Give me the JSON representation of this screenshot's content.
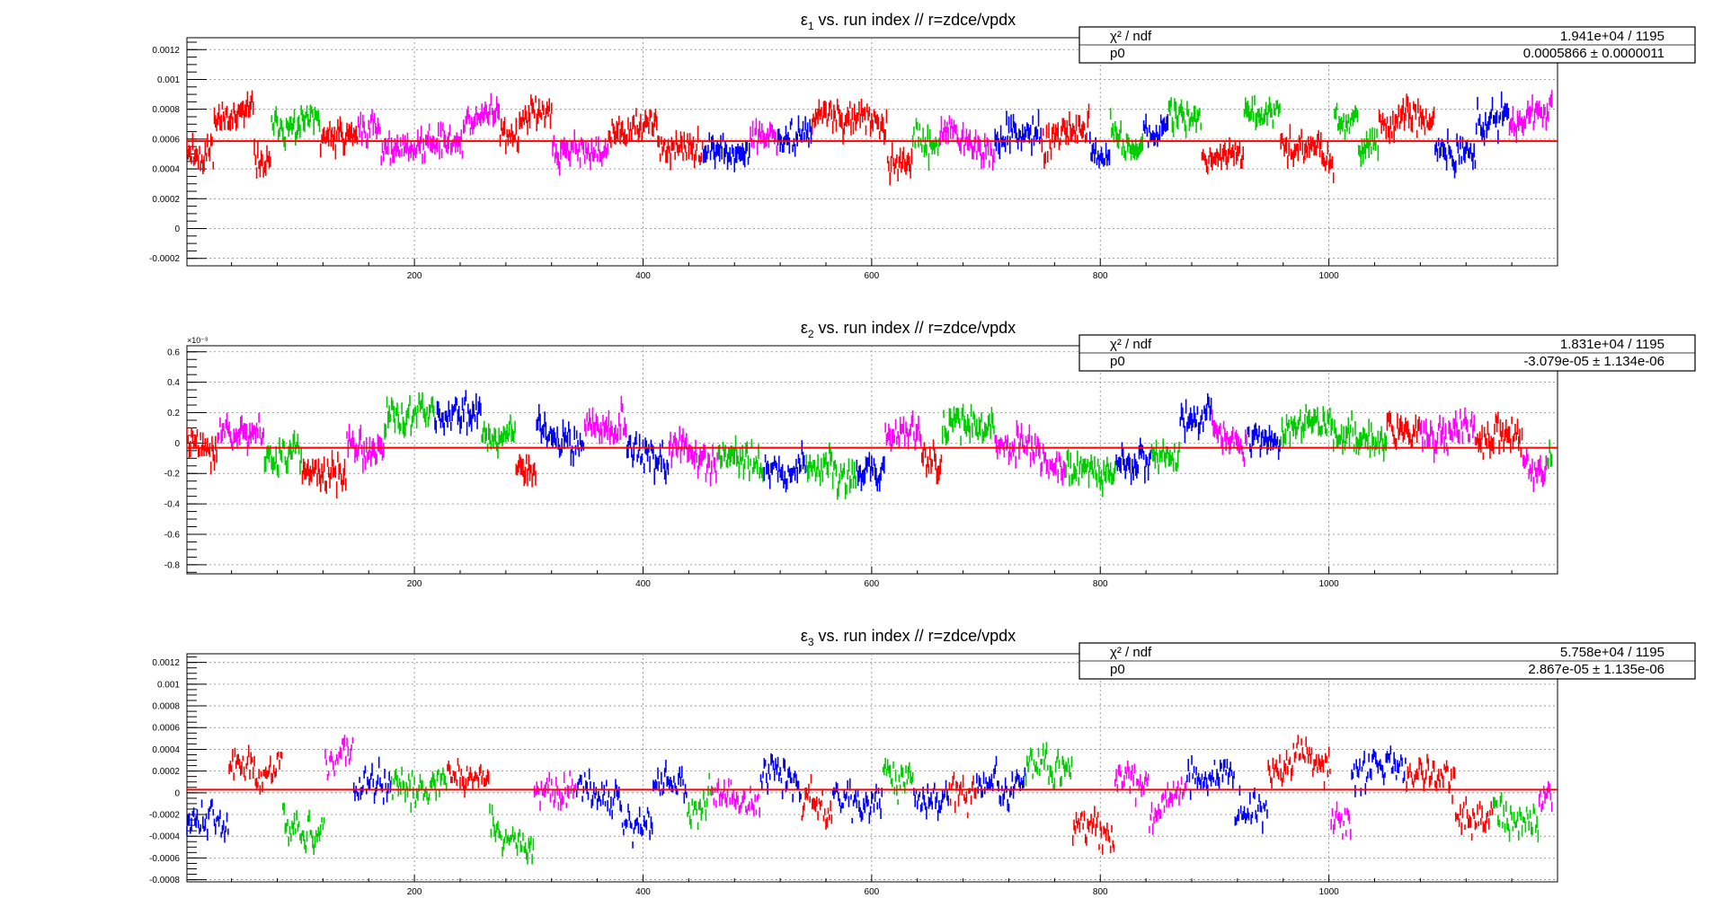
{
  "chart_data": [
    {
      "type": "scatter",
      "title_symbol": "ε",
      "title_sub": "1",
      "title_rest": "vs. run index // r=zdce/vpdx",
      "x_ticks": [
        200,
        400,
        600,
        800,
        1000
      ],
      "xlim": [
        1,
        1200
      ],
      "ylim": [
        -0.00025,
        0.00128
      ],
      "y_ticks": [
        -0.0002,
        0,
        0.0002,
        0.0004,
        0.0006,
        0.0008,
        0.001,
        0.0012
      ],
      "y_tick_labels": [
        "-0.0002",
        "0",
        "0.0002",
        "0.0004",
        "0.0006",
        "0.0008",
        "0.001",
        "0.0012"
      ],
      "y_exponent_label": "",
      "fit_value": 0.0005866,
      "fit_color": "#ff0000",
      "stats": {
        "row1_label": "χ² / ndf",
        "row1_value": "1.941e+04 / 1195",
        "row2_label": "p0",
        "row2_value": "0.0005866 ± 0.0000011"
      },
      "series_colors": [
        "#ff0000",
        "#0000ff",
        "#00cc00",
        "#ff00ff"
      ],
      "center": 0.0006,
      "sigma": 0.00015,
      "err": 4e-05,
      "seed": 11
    },
    {
      "type": "scatter",
      "title_symbol": "ε",
      "title_sub": "2",
      "title_rest": "vs. run index // r=zdce/vpdx",
      "x_ticks": [
        200,
        400,
        600,
        800,
        1000
      ],
      "xlim": [
        1,
        1200
      ],
      "ylim": [
        -0.00086,
        0.00064
      ],
      "y_ticks": [
        -0.0008,
        -0.0006,
        -0.0004,
        -0.0002,
        0,
        0.0002,
        0.0004,
        0.0006
      ],
      "y_tick_labels": [
        "-0.8",
        "-0.6",
        "-0.4",
        "-0.2",
        "0",
        "0.2",
        "0.4",
        "0.6"
      ],
      "y_exponent_label": "×10⁻³",
      "fit_value": -3.079e-05,
      "fit_color": "#ff0000",
      "stats": {
        "row1_label": "χ² / ndf",
        "row1_value": "1.831e+04 / 1195",
        "row2_label": "p0",
        "row2_value": "-3.079e-05 ± 1.134e-06"
      },
      "series_colors": [
        "#ff0000",
        "#0000ff",
        "#00cc00",
        "#ff00ff"
      ],
      "center": 0,
      "sigma": 0.00016,
      "err": 4e-05,
      "seed": 23
    },
    {
      "type": "scatter",
      "title_symbol": "ε",
      "title_sub": "3",
      "title_rest": "vs. run index // r=zdce/vpdx",
      "x_ticks": [
        200,
        400,
        600,
        800,
        1000
      ],
      "xlim": [
        1,
        1200
      ],
      "ylim": [
        -0.00082,
        0.00128
      ],
      "y_ticks": [
        -0.0008,
        -0.0006,
        -0.0004,
        -0.0002,
        0,
        0.0002,
        0.0004,
        0.0006,
        0.0008,
        0.001,
        0.0012
      ],
      "y_tick_labels": [
        "-0.0008",
        "-0.0006",
        "-0.0004",
        "-0.0002",
        "0",
        "0.0002",
        "0.0004",
        "0.0006",
        "0.0008",
        "0.001",
        "0.0012"
      ],
      "y_exponent_label": "",
      "fit_value": 2.867e-05,
      "fit_color": "#ff0000",
      "stats": {
        "row1_label": "χ² / ndf",
        "row1_value": "5.758e+04 / 1195",
        "row2_label": "p0",
        "row2_value": "2.867e-05 ± 1.135e-06"
      },
      "series_colors": [
        "#ff0000",
        "#0000ff",
        "#00cc00",
        "#ff00ff"
      ],
      "center": 0,
      "sigma": 0.00025,
      "err": 4e-05,
      "seed": 37
    }
  ]
}
